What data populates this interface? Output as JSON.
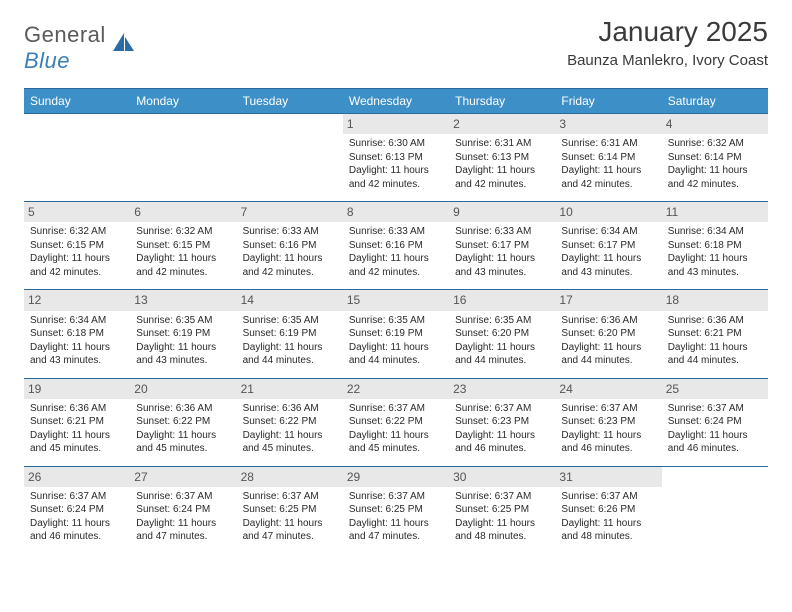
{
  "logo": {
    "word1": "General",
    "word2": "Blue"
  },
  "title": "January 2025",
  "location": "Baunza Manlekro, Ivory Coast",
  "colors": {
    "header_bg": "#3d8fc7",
    "header_border": "#2a6a9a",
    "daynum_bg": "#e8e8e8",
    "text": "#2a2a2a"
  },
  "dayHeaders": [
    "Sunday",
    "Monday",
    "Tuesday",
    "Wednesday",
    "Thursday",
    "Friday",
    "Saturday"
  ],
  "weeks": [
    [
      {
        "day": "",
        "lines": []
      },
      {
        "day": "",
        "lines": []
      },
      {
        "day": "",
        "lines": []
      },
      {
        "day": "1",
        "lines": [
          "Sunrise: 6:30 AM",
          "Sunset: 6:13 PM",
          "Daylight: 11 hours and 42 minutes."
        ]
      },
      {
        "day": "2",
        "lines": [
          "Sunrise: 6:31 AM",
          "Sunset: 6:13 PM",
          "Daylight: 11 hours and 42 minutes."
        ]
      },
      {
        "day": "3",
        "lines": [
          "Sunrise: 6:31 AM",
          "Sunset: 6:14 PM",
          "Daylight: 11 hours and 42 minutes."
        ]
      },
      {
        "day": "4",
        "lines": [
          "Sunrise: 6:32 AM",
          "Sunset: 6:14 PM",
          "Daylight: 11 hours and 42 minutes."
        ]
      }
    ],
    [
      {
        "day": "5",
        "lines": [
          "Sunrise: 6:32 AM",
          "Sunset: 6:15 PM",
          "Daylight: 11 hours and 42 minutes."
        ]
      },
      {
        "day": "6",
        "lines": [
          "Sunrise: 6:32 AM",
          "Sunset: 6:15 PM",
          "Daylight: 11 hours and 42 minutes."
        ]
      },
      {
        "day": "7",
        "lines": [
          "Sunrise: 6:33 AM",
          "Sunset: 6:16 PM",
          "Daylight: 11 hours and 42 minutes."
        ]
      },
      {
        "day": "8",
        "lines": [
          "Sunrise: 6:33 AM",
          "Sunset: 6:16 PM",
          "Daylight: 11 hours and 42 minutes."
        ]
      },
      {
        "day": "9",
        "lines": [
          "Sunrise: 6:33 AM",
          "Sunset: 6:17 PM",
          "Daylight: 11 hours and 43 minutes."
        ]
      },
      {
        "day": "10",
        "lines": [
          "Sunrise: 6:34 AM",
          "Sunset: 6:17 PM",
          "Daylight: 11 hours and 43 minutes."
        ]
      },
      {
        "day": "11",
        "lines": [
          "Sunrise: 6:34 AM",
          "Sunset: 6:18 PM",
          "Daylight: 11 hours and 43 minutes."
        ]
      }
    ],
    [
      {
        "day": "12",
        "lines": [
          "Sunrise: 6:34 AM",
          "Sunset: 6:18 PM",
          "Daylight: 11 hours and 43 minutes."
        ]
      },
      {
        "day": "13",
        "lines": [
          "Sunrise: 6:35 AM",
          "Sunset: 6:19 PM",
          "Daylight: 11 hours and 43 minutes."
        ]
      },
      {
        "day": "14",
        "lines": [
          "Sunrise: 6:35 AM",
          "Sunset: 6:19 PM",
          "Daylight: 11 hours and 44 minutes."
        ]
      },
      {
        "day": "15",
        "lines": [
          "Sunrise: 6:35 AM",
          "Sunset: 6:19 PM",
          "Daylight: 11 hours and 44 minutes."
        ]
      },
      {
        "day": "16",
        "lines": [
          "Sunrise: 6:35 AM",
          "Sunset: 6:20 PM",
          "Daylight: 11 hours and 44 minutes."
        ]
      },
      {
        "day": "17",
        "lines": [
          "Sunrise: 6:36 AM",
          "Sunset: 6:20 PM",
          "Daylight: 11 hours and 44 minutes."
        ]
      },
      {
        "day": "18",
        "lines": [
          "Sunrise: 6:36 AM",
          "Sunset: 6:21 PM",
          "Daylight: 11 hours and 44 minutes."
        ]
      }
    ],
    [
      {
        "day": "19",
        "lines": [
          "Sunrise: 6:36 AM",
          "Sunset: 6:21 PM",
          "Daylight: 11 hours and 45 minutes."
        ]
      },
      {
        "day": "20",
        "lines": [
          "Sunrise: 6:36 AM",
          "Sunset: 6:22 PM",
          "Daylight: 11 hours and 45 minutes."
        ]
      },
      {
        "day": "21",
        "lines": [
          "Sunrise: 6:36 AM",
          "Sunset: 6:22 PM",
          "Daylight: 11 hours and 45 minutes."
        ]
      },
      {
        "day": "22",
        "lines": [
          "Sunrise: 6:37 AM",
          "Sunset: 6:22 PM",
          "Daylight: 11 hours and 45 minutes."
        ]
      },
      {
        "day": "23",
        "lines": [
          "Sunrise: 6:37 AM",
          "Sunset: 6:23 PM",
          "Daylight: 11 hours and 46 minutes."
        ]
      },
      {
        "day": "24",
        "lines": [
          "Sunrise: 6:37 AM",
          "Sunset: 6:23 PM",
          "Daylight: 11 hours and 46 minutes."
        ]
      },
      {
        "day": "25",
        "lines": [
          "Sunrise: 6:37 AM",
          "Sunset: 6:24 PM",
          "Daylight: 11 hours and 46 minutes."
        ]
      }
    ],
    [
      {
        "day": "26",
        "lines": [
          "Sunrise: 6:37 AM",
          "Sunset: 6:24 PM",
          "Daylight: 11 hours and 46 minutes."
        ]
      },
      {
        "day": "27",
        "lines": [
          "Sunrise: 6:37 AM",
          "Sunset: 6:24 PM",
          "Daylight: 11 hours and 47 minutes."
        ]
      },
      {
        "day": "28",
        "lines": [
          "Sunrise: 6:37 AM",
          "Sunset: 6:25 PM",
          "Daylight: 11 hours and 47 minutes."
        ]
      },
      {
        "day": "29",
        "lines": [
          "Sunrise: 6:37 AM",
          "Sunset: 6:25 PM",
          "Daylight: 11 hours and 47 minutes."
        ]
      },
      {
        "day": "30",
        "lines": [
          "Sunrise: 6:37 AM",
          "Sunset: 6:25 PM",
          "Daylight: 11 hours and 48 minutes."
        ]
      },
      {
        "day": "31",
        "lines": [
          "Sunrise: 6:37 AM",
          "Sunset: 6:26 PM",
          "Daylight: 11 hours and 48 minutes."
        ]
      },
      {
        "day": "",
        "lines": []
      }
    ]
  ]
}
